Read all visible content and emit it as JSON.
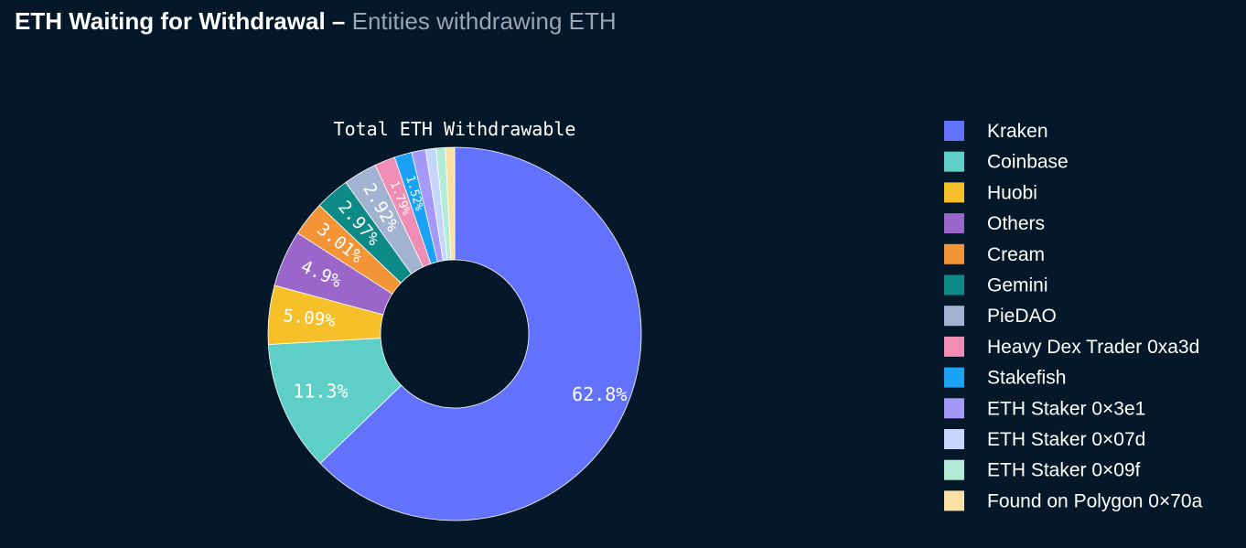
{
  "header": {
    "title": "ETH Waiting for Withdrawal",
    "separator": "–",
    "subtitle": "Entities withdrawing ETH"
  },
  "colors": {
    "background": "#04182a",
    "text": "#ffffff",
    "subtitle": "#9aa5b1"
  },
  "chart_data": {
    "type": "pie",
    "donut": true,
    "title": "Total ETH Withdrawable",
    "legend_position": "right",
    "slices": [
      {
        "name": "Kraken",
        "value": 62.8,
        "label": "62.8%",
        "color": "#6272fd"
      },
      {
        "name": "Coinbase",
        "value": 11.3,
        "label": "11.3%",
        "color": "#5ecfc6"
      },
      {
        "name": "Huobi",
        "value": 5.09,
        "label": "5.09%",
        "color": "#f5c02a"
      },
      {
        "name": "Others",
        "value": 4.9,
        "label": "4.9%",
        "color": "#9b66c9"
      },
      {
        "name": "Cream",
        "value": 3.01,
        "label": "3.01%",
        "color": "#f39437"
      },
      {
        "name": "Gemini",
        "value": 2.97,
        "label": "2.97%",
        "color": "#0d8a86"
      },
      {
        "name": "PieDAO",
        "value": 2.92,
        "label": "2.92%",
        "color": "#a2b3d1"
      },
      {
        "name": "Heavy Dex Trader 0xa3d",
        "value": 1.79,
        "label": "1.79%",
        "color": "#ef8db5"
      },
      {
        "name": "Stakefish",
        "value": 1.52,
        "label": "1.52%",
        "color": "#1ba2f4"
      },
      {
        "name": "ETH Staker 0×3e1",
        "value": 1.2,
        "label": "",
        "color": "#a498f8"
      },
      {
        "name": "ETH Staker 0×07d",
        "value": 0.9,
        "label": "",
        "color": "#c4d6fb"
      },
      {
        "name": "ETH Staker 0×09f",
        "value": 0.8,
        "label": "",
        "color": "#b2ecd6"
      },
      {
        "name": "Found on Polygon 0×70a",
        "value": 0.8,
        "label": "",
        "color": "#fbe0a3"
      }
    ]
  }
}
